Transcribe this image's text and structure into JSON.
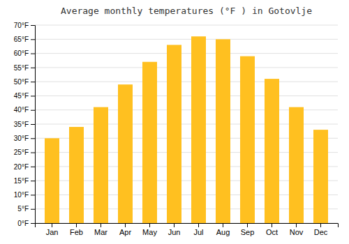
{
  "chart_data": {
    "type": "bar",
    "title": "Average monthly temperatures (°F ) in Gotovlje",
    "categories": [
      "Jan",
      "Feb",
      "Mar",
      "Apr",
      "May",
      "Jun",
      "Jul",
      "Aug",
      "Sep",
      "Oct",
      "Nov",
      "Dec"
    ],
    "values": [
      30,
      34,
      41,
      49,
      57,
      63,
      66,
      65,
      59,
      51,
      41,
      33
    ],
    "color": "#FFC020",
    "ylim": [
      0,
      70
    ],
    "yticks": [
      {
        "value": 0,
        "label": "0°F"
      },
      {
        "value": 5,
        "label": "5°F"
      },
      {
        "value": 10,
        "label": "10°F"
      },
      {
        "value": 15,
        "label": "15°F"
      },
      {
        "value": 20,
        "label": "20°F"
      },
      {
        "value": 25,
        "label": "25°F"
      },
      {
        "value": 30,
        "label": "30°F"
      },
      {
        "value": 35,
        "label": "35°F"
      },
      {
        "value": 40,
        "label": "40°F"
      },
      {
        "value": 45,
        "label": "45°F"
      },
      {
        "value": 50,
        "label": "50°F"
      },
      {
        "value": 55,
        "label": "55°F"
      },
      {
        "value": 60,
        "label": "60°F"
      },
      {
        "value": 65,
        "label": "65°F"
      },
      {
        "value": 70,
        "label": "70°F"
      }
    ],
    "grid": true
  }
}
